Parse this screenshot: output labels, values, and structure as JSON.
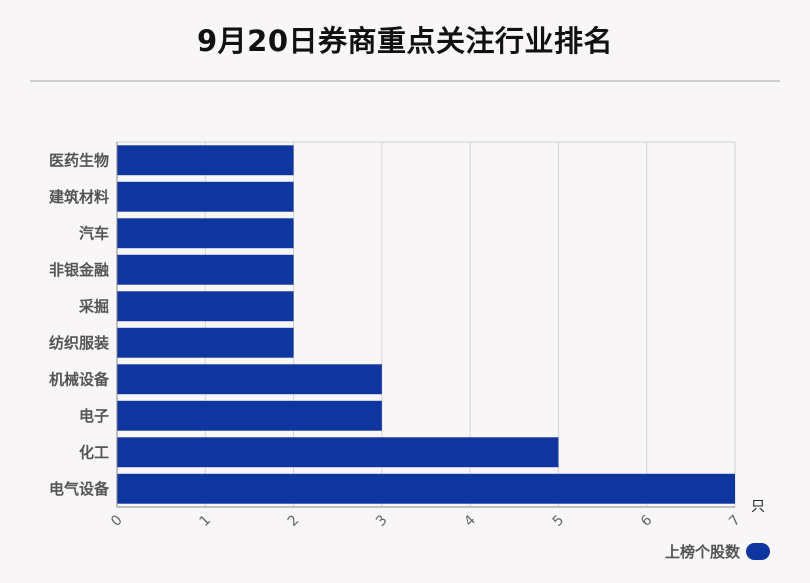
{
  "title": "9月20日券商重点关注行业排名",
  "chart_data": {
    "type": "bar",
    "orientation": "horizontal",
    "categories": [
      "医药生物",
      "建筑材料",
      "汽车",
      "非银金融",
      "采掘",
      "纺织服装",
      "机械设备",
      "电子",
      "化工",
      "电气设备"
    ],
    "series": [
      {
        "name": "上榜个股数",
        "values": [
          2,
          2,
          2,
          2,
          2,
          2,
          3,
          3,
          5,
          7
        ]
      }
    ],
    "xlim": [
      0,
      7
    ],
    "xticks": [
      "0",
      "1",
      "2",
      "3",
      "4",
      "5",
      "6",
      "7"
    ],
    "xunit": "只",
    "grid": true,
    "legend_position": "bottom-right",
    "bar_color": "#0e35a0"
  }
}
